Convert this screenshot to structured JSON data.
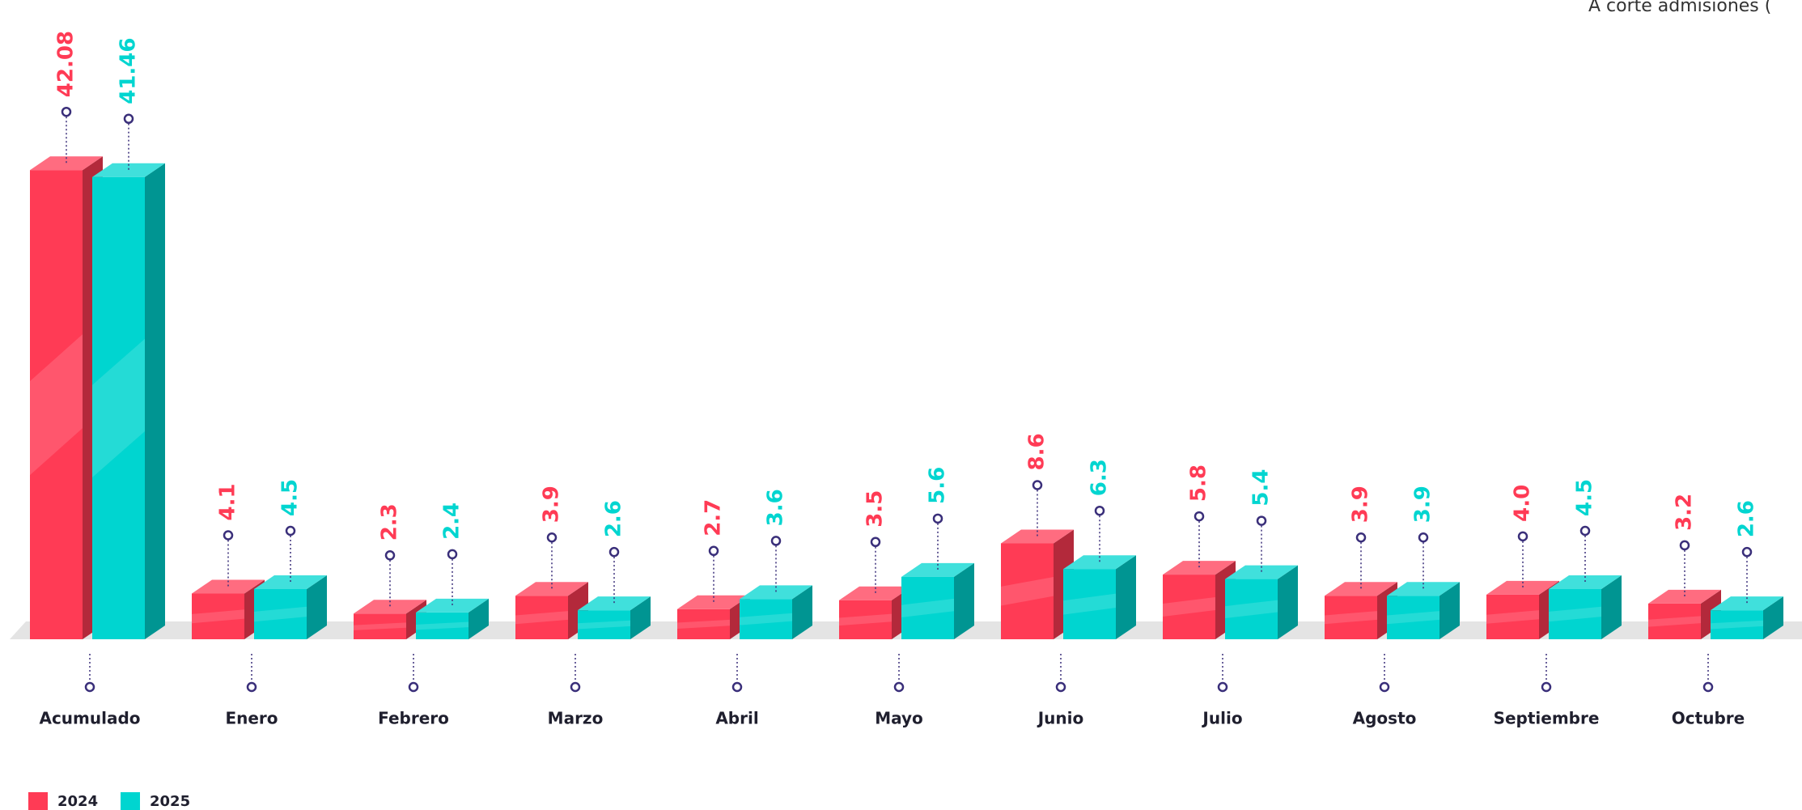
{
  "chart_data": {
    "type": "bar3d",
    "subtitle": "A corte admisiones (",
    "categories": [
      "Acumulado",
      "Enero",
      "Febrero",
      "Marzo",
      "Abril",
      "Mayo",
      "Junio",
      "Julio",
      "Agosto",
      "Septiembre",
      "Octubre"
    ],
    "series": [
      {
        "name": "2024",
        "color": "#ff3b55",
        "values": [
          42.08,
          4.1,
          2.3,
          3.9,
          2.7,
          3.5,
          8.6,
          5.8,
          3.9,
          4.0,
          3.2
        ],
        "value_labels": [
          "42.08",
          "4.1",
          "2.3",
          "3.9",
          "2.7",
          "3.5",
          "8.6",
          "5.8",
          "3.9",
          "4.0",
          "3.2"
        ]
      },
      {
        "name": "2025",
        "color": "#00d5d0",
        "values": [
          41.46,
          4.5,
          2.4,
          2.6,
          3.6,
          5.6,
          6.3,
          5.4,
          3.9,
          4.5,
          2.6
        ],
        "value_labels": [
          "41.46",
          "4.5",
          "2.4",
          "2.6",
          "3.6",
          "5.6",
          "6.3",
          "5.4",
          "3.9",
          "4.5",
          "2.6"
        ]
      }
    ],
    "ylim": [
      0,
      45
    ]
  }
}
